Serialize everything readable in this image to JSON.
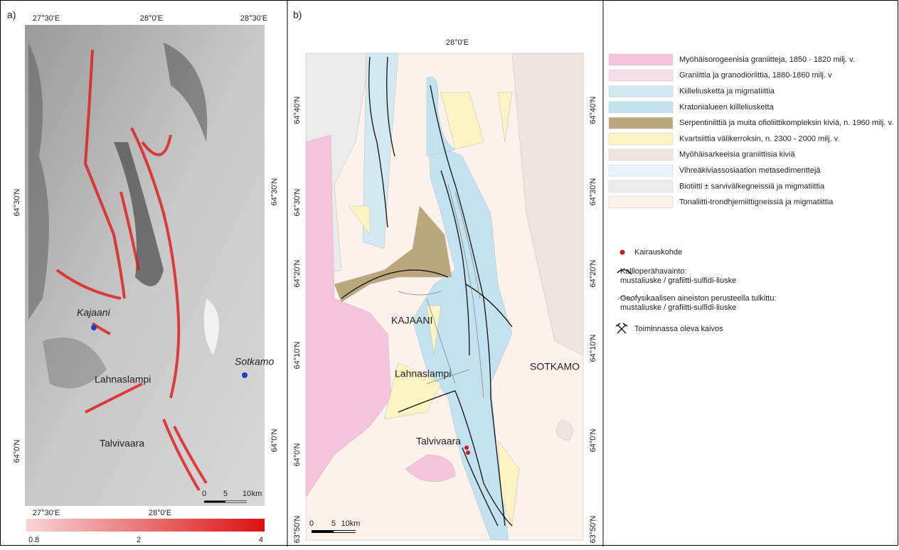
{
  "panel_a": {
    "label": "a)",
    "top_ticks": [
      "27°30'E",
      "28°0'E",
      "28°30'E"
    ],
    "bottom_ticks": [
      "27°30'E",
      "28°0'E"
    ],
    "left_ticks": [
      "64°30'N",
      "64°0'N"
    ],
    "right_ticks": [
      "64°30'N",
      "64°0'N"
    ],
    "places": [
      "Kajaani",
      "Lahnaslampi",
      "Sotkamo",
      "Talvivaara"
    ],
    "scale": [
      "0",
      "5",
      "10",
      "km"
    ],
    "colorbar_ticks": [
      "0.8",
      "2",
      "4"
    ]
  },
  "panel_b": {
    "label": "b)",
    "top_ticks": [
      "28°0'E"
    ],
    "left_ticks": [
      "64°40'N",
      "64°30'N",
      "64°20'N",
      "64°10'N",
      "64°0'N",
      "63°50'N"
    ],
    "right_ticks": [
      "64°40'N",
      "64°30'N",
      "64°20'N",
      "64°10'N",
      "64°0'N",
      "63°50'N"
    ],
    "places": [
      "KAJAANI",
      "Lahnaslampi",
      "SOTKAMO",
      "Talvivaara"
    ],
    "scale": [
      "0",
      "5",
      "10km"
    ]
  },
  "legend": {
    "units": [
      {
        "label": "Myöhäisorogeenisia graniitteja, 1850 - 1820 milj. v.",
        "color": "#f5c3da"
      },
      {
        "label": "Graniittia ja granodioriittia, 1880-1860 milj. v",
        "color": "#f9dcea"
      },
      {
        "label": "Kiilleliusketta ja migmatiittia",
        "color": "#d3e9f1"
      },
      {
        "label": "Kratonialueen kiilleliusketta",
        "color": "#c3e2ef"
      },
      {
        "label": "Serpentiniittiä ja muita ofioliittikompleksin kiviä, n. 1960 milj. v.",
        "color": "#bba77c"
      },
      {
        "label": "Kvartsiittia välikerroksin, n. 2300 - 2000 milj. v.",
        "color": "#fbf3c2"
      },
      {
        "label": "Myöhäisarkeeisia graniittisia kiviä",
        "color": "#eee5e1"
      },
      {
        "label": "Vihreäkiviassosiaation metasedimenttejä",
        "color": "#e9f3fb"
      },
      {
        "label": "Biotiitti ± sarvivälkegneissiä ja migmatiittia",
        "color": "#ebebeb"
      },
      {
        "label": "Tonaliitti-trondhjemiittigneissiä ja migmatiittia",
        "color": "#fdf2eb"
      }
    ],
    "symbols": [
      {
        "lines": [
          "Kairauskohde"
        ]
      },
      {
        "lines": [
          "Kallioperähavainto:",
          "mustaliuske / grafiitti-sulfidi-liuske"
        ]
      },
      {
        "lines": [
          "Geofysikaalisen aineiston perusteella tulkittu:",
          "mustaliuske / grafiitti-sulfidi-liuske"
        ]
      },
      {
        "lines": [
          "Toiminnassa oleva kaivos"
        ]
      }
    ]
  }
}
